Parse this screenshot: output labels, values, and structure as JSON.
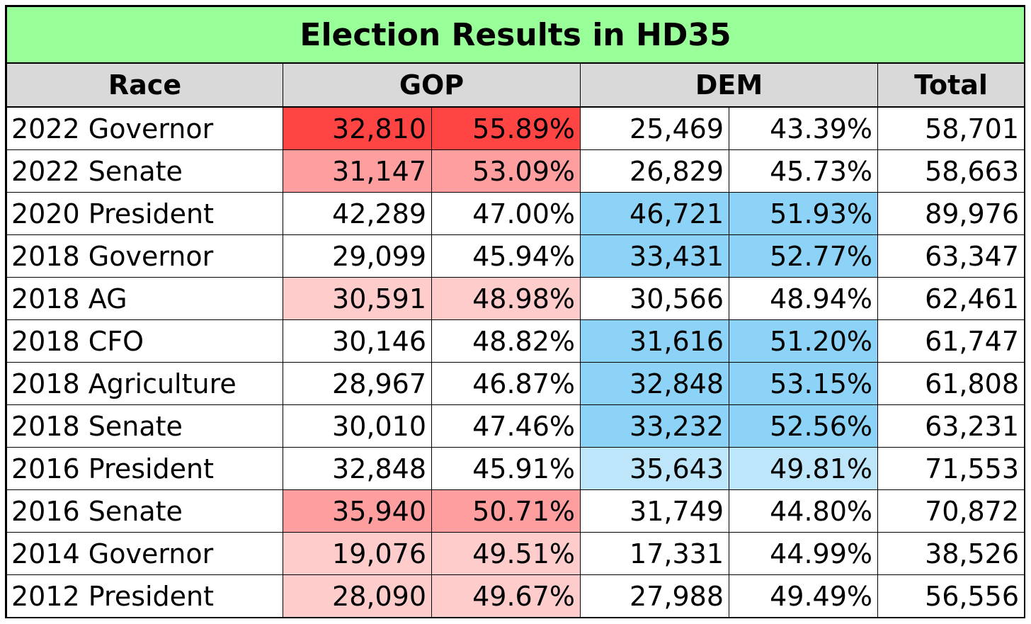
{
  "title": "Election Results in HD35",
  "headers": {
    "race": "Race",
    "gop": "GOP",
    "dem": "DEM",
    "total": "Total"
  },
  "colors": {
    "title_bg": "#99FF99",
    "header_bg": "#D9D9D9",
    "gop_strong": "#FF4444",
    "gop_medium": "#FF9E9E",
    "gop_light": "#FFCCCC",
    "dem_medium": "#8CD3F7",
    "dem_light": "#BDE6FB",
    "none": "#FFFFFF"
  },
  "rows": [
    {
      "race": "2022 Governor",
      "gop_votes": "32,810",
      "gop_pct": "55.89%",
      "dem_votes": "25,469",
      "dem_pct": "43.39%",
      "total": "58,701",
      "gop_shade": "gop_strong",
      "dem_shade": "none"
    },
    {
      "race": "2022 Senate",
      "gop_votes": "31,147",
      "gop_pct": "53.09%",
      "dem_votes": "26,829",
      "dem_pct": "45.73%",
      "total": "58,663",
      "gop_shade": "gop_medium",
      "dem_shade": "none"
    },
    {
      "race": "2020 President",
      "gop_votes": "42,289",
      "gop_pct": "47.00%",
      "dem_votes": "46,721",
      "dem_pct": "51.93%",
      "total": "89,976",
      "gop_shade": "none",
      "dem_shade": "dem_medium"
    },
    {
      "race": "2018 Governor",
      "gop_votes": "29,099",
      "gop_pct": "45.94%",
      "dem_votes": "33,431",
      "dem_pct": "52.77%",
      "total": "63,347",
      "gop_shade": "none",
      "dem_shade": "dem_medium"
    },
    {
      "race": "2018 AG",
      "gop_votes": "30,591",
      "gop_pct": "48.98%",
      "dem_votes": "30,566",
      "dem_pct": "48.94%",
      "total": "62,461",
      "gop_shade": "gop_light",
      "dem_shade": "none"
    },
    {
      "race": "2018 CFO",
      "gop_votes": "30,146",
      "gop_pct": "48.82%",
      "dem_votes": "31,616",
      "dem_pct": "51.20%",
      "total": "61,747",
      "gop_shade": "none",
      "dem_shade": "dem_medium"
    },
    {
      "race": "2018 Agriculture",
      "gop_votes": "28,967",
      "gop_pct": "46.87%",
      "dem_votes": "32,848",
      "dem_pct": "53.15%",
      "total": "61,808",
      "gop_shade": "none",
      "dem_shade": "dem_medium"
    },
    {
      "race": "2018 Senate",
      "gop_votes": "30,010",
      "gop_pct": "47.46%",
      "dem_votes": "33,232",
      "dem_pct": "52.56%",
      "total": "63,231",
      "gop_shade": "none",
      "dem_shade": "dem_medium"
    },
    {
      "race": "2016 President",
      "gop_votes": "32,848",
      "gop_pct": "45.91%",
      "dem_votes": "35,643",
      "dem_pct": "49.81%",
      "total": "71,553",
      "gop_shade": "none",
      "dem_shade": "dem_light"
    },
    {
      "race": "2016 Senate",
      "gop_votes": "35,940",
      "gop_pct": "50.71%",
      "dem_votes": "31,749",
      "dem_pct": "44.80%",
      "total": "70,872",
      "gop_shade": "gop_medium",
      "dem_shade": "none"
    },
    {
      "race": "2014 Governor",
      "gop_votes": "19,076",
      "gop_pct": "49.51%",
      "dem_votes": "17,331",
      "dem_pct": "44.99%",
      "total": "38,526",
      "gop_shade": "gop_light",
      "dem_shade": "none"
    },
    {
      "race": "2012 President",
      "gop_votes": "28,090",
      "gop_pct": "49.67%",
      "dem_votes": "27,988",
      "dem_pct": "49.49%",
      "total": "56,556",
      "gop_shade": "gop_light",
      "dem_shade": "none"
    }
  ]
}
